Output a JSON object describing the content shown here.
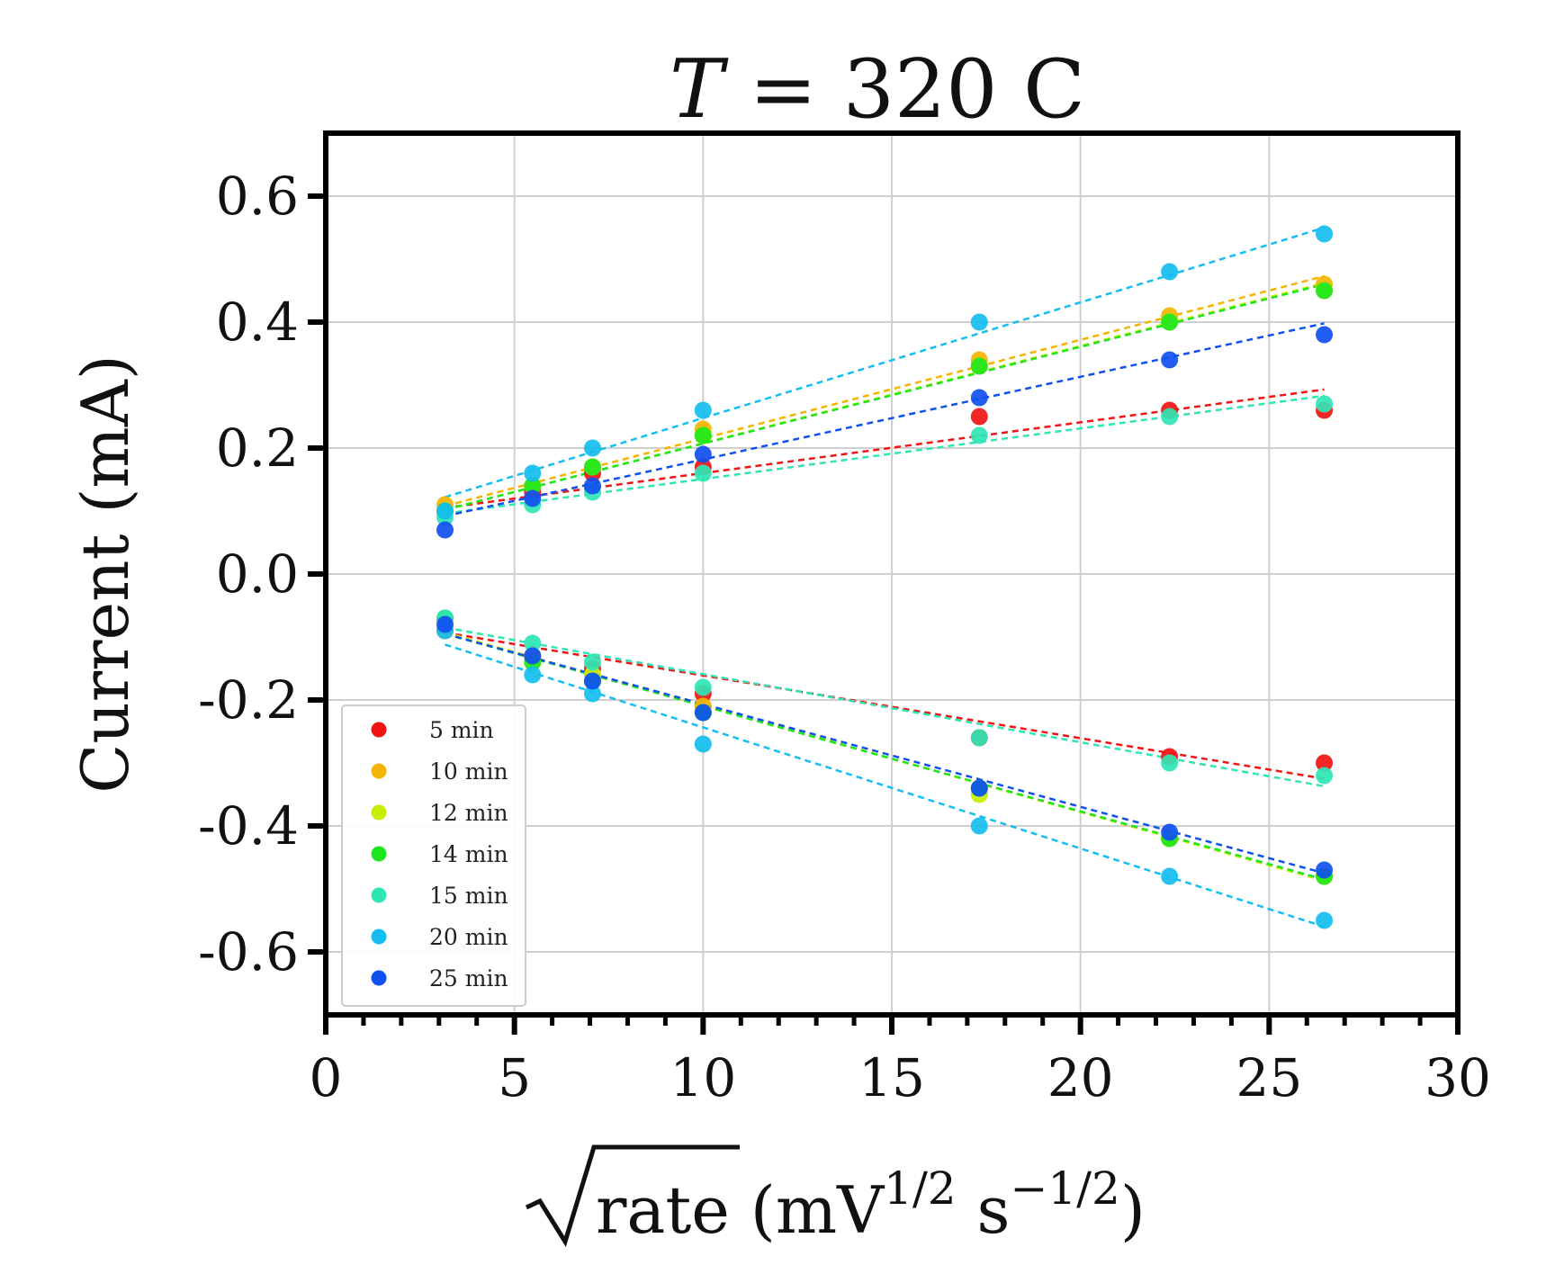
{
  "chart_data": {
    "type": "scatter",
    "title": {
      "main": "T",
      "rest": " = 320 C"
    },
    "xlabel": {
      "radicand": "rate",
      "unit_open": " (mV",
      "exp1": "1/2",
      "s": " s",
      "exp2": "−1/2",
      "unit_close": ")"
    },
    "ylabel": "Current (mA)",
    "xlim": [
      0,
      30
    ],
    "ylim": [
      -0.7,
      0.7
    ],
    "x_ticks": [
      0,
      5,
      10,
      15,
      20,
      25,
      30
    ],
    "x_tick_labels": [
      "0",
      "5",
      "10",
      "15",
      "20",
      "25",
      "30"
    ],
    "y_ticks": [
      0.6,
      0.4,
      0.2,
      0.0,
      -0.2,
      -0.4,
      -0.6
    ],
    "y_tick_labels": [
      "0.6",
      "0.4",
      "0.2",
      "0.0",
      "-0.2",
      "-0.4",
      "-0.6"
    ],
    "grid": true,
    "legend_position": "lower-left",
    "x": [
      3.16,
      5.48,
      7.07,
      10.0,
      17.32,
      22.36,
      26.46
    ],
    "series": [
      {
        "name": "5 min",
        "color": "#f01414",
        "anodic": [
          0.1,
          0.13,
          0.16,
          0.17,
          0.25,
          0.26,
          0.26
        ],
        "cathodic": [
          -0.09,
          -0.13,
          -0.15,
          -0.19,
          -0.26,
          -0.29,
          -0.3
        ],
        "fit_anodic": [
          [
            3.16,
            0.105
          ],
          [
            26.46,
            0.293
          ]
        ],
        "fit_cathodic": [
          [
            3.16,
            -0.093
          ],
          [
            26.46,
            -0.325
          ]
        ]
      },
      {
        "name": "10 min",
        "color": "#f5b400",
        "anodic": [
          0.11,
          0.14,
          0.17,
          0.23,
          0.34,
          0.41,
          0.46
        ],
        "cathodic": [
          -0.09,
          -0.13,
          -0.16,
          -0.21,
          -0.34,
          -0.42,
          -0.48
        ],
        "fit_anodic": [
          [
            3.16,
            0.108
          ],
          [
            26.46,
            0.473
          ]
        ],
        "fit_cathodic": [
          [
            3.16,
            -0.093
          ],
          [
            26.46,
            -0.487
          ]
        ]
      },
      {
        "name": "12 min",
        "color": "#c8ee00",
        "anodic": [
          0.1,
          0.14,
          0.17,
          0.22,
          0.33,
          0.4,
          0.45
        ],
        "cathodic": [
          -0.07,
          -0.14,
          -0.16,
          -0.22,
          -0.35,
          -0.42,
          -0.48
        ],
        "fit_anodic": [
          [
            3.16,
            0.102
          ],
          [
            26.46,
            0.462
          ]
        ],
        "fit_cathodic": [
          [
            3.16,
            -0.093
          ],
          [
            26.46,
            -0.487
          ]
        ]
      },
      {
        "name": "14 min",
        "color": "#1ee61e",
        "anodic": [
          0.1,
          0.14,
          0.17,
          0.22,
          0.33,
          0.4,
          0.45
        ],
        "cathodic": [
          -0.07,
          -0.14,
          -0.17,
          -0.22,
          -0.34,
          -0.42,
          -0.48
        ],
        "fit_anodic": [
          [
            3.16,
            0.102
          ],
          [
            26.46,
            0.46
          ]
        ],
        "fit_cathodic": [
          [
            3.16,
            -0.095
          ],
          [
            26.46,
            -0.485
          ]
        ]
      },
      {
        "name": "15 min",
        "color": "#2ee6b4",
        "anodic": [
          0.09,
          0.11,
          0.13,
          0.16,
          0.22,
          0.25,
          0.27
        ],
        "cathodic": [
          -0.07,
          -0.11,
          -0.14,
          -0.18,
          -0.26,
          -0.3,
          -0.32
        ],
        "fit_anodic": [
          [
            3.16,
            0.096
          ],
          [
            26.46,
            0.283
          ]
        ],
        "fit_cathodic": [
          [
            3.16,
            -0.085
          ],
          [
            26.46,
            -0.337
          ]
        ]
      },
      {
        "name": "20 min",
        "color": "#14bef0",
        "anodic": [
          0.1,
          0.16,
          0.2,
          0.26,
          0.4,
          0.48,
          0.54
        ],
        "cathodic": [
          -0.09,
          -0.16,
          -0.19,
          -0.27,
          -0.4,
          -0.48,
          -0.55
        ],
        "fit_anodic": [
          [
            3.16,
            0.122
          ],
          [
            26.46,
            0.55
          ]
        ],
        "fit_cathodic": [
          [
            3.16,
            -0.112
          ],
          [
            26.46,
            -0.56
          ]
        ]
      },
      {
        "name": "25 min",
        "color": "#1050f0",
        "anodic": [
          0.07,
          0.12,
          0.14,
          0.19,
          0.28,
          0.34,
          0.38
        ],
        "cathodic": [
          -0.08,
          -0.13,
          -0.17,
          -0.22,
          -0.34,
          -0.41,
          -0.47
        ],
        "fit_anodic": [
          [
            3.16,
            0.092
          ],
          [
            26.46,
            0.398
          ]
        ],
        "fit_cathodic": [
          [
            3.16,
            -0.095
          ],
          [
            26.46,
            -0.475
          ]
        ]
      }
    ]
  }
}
